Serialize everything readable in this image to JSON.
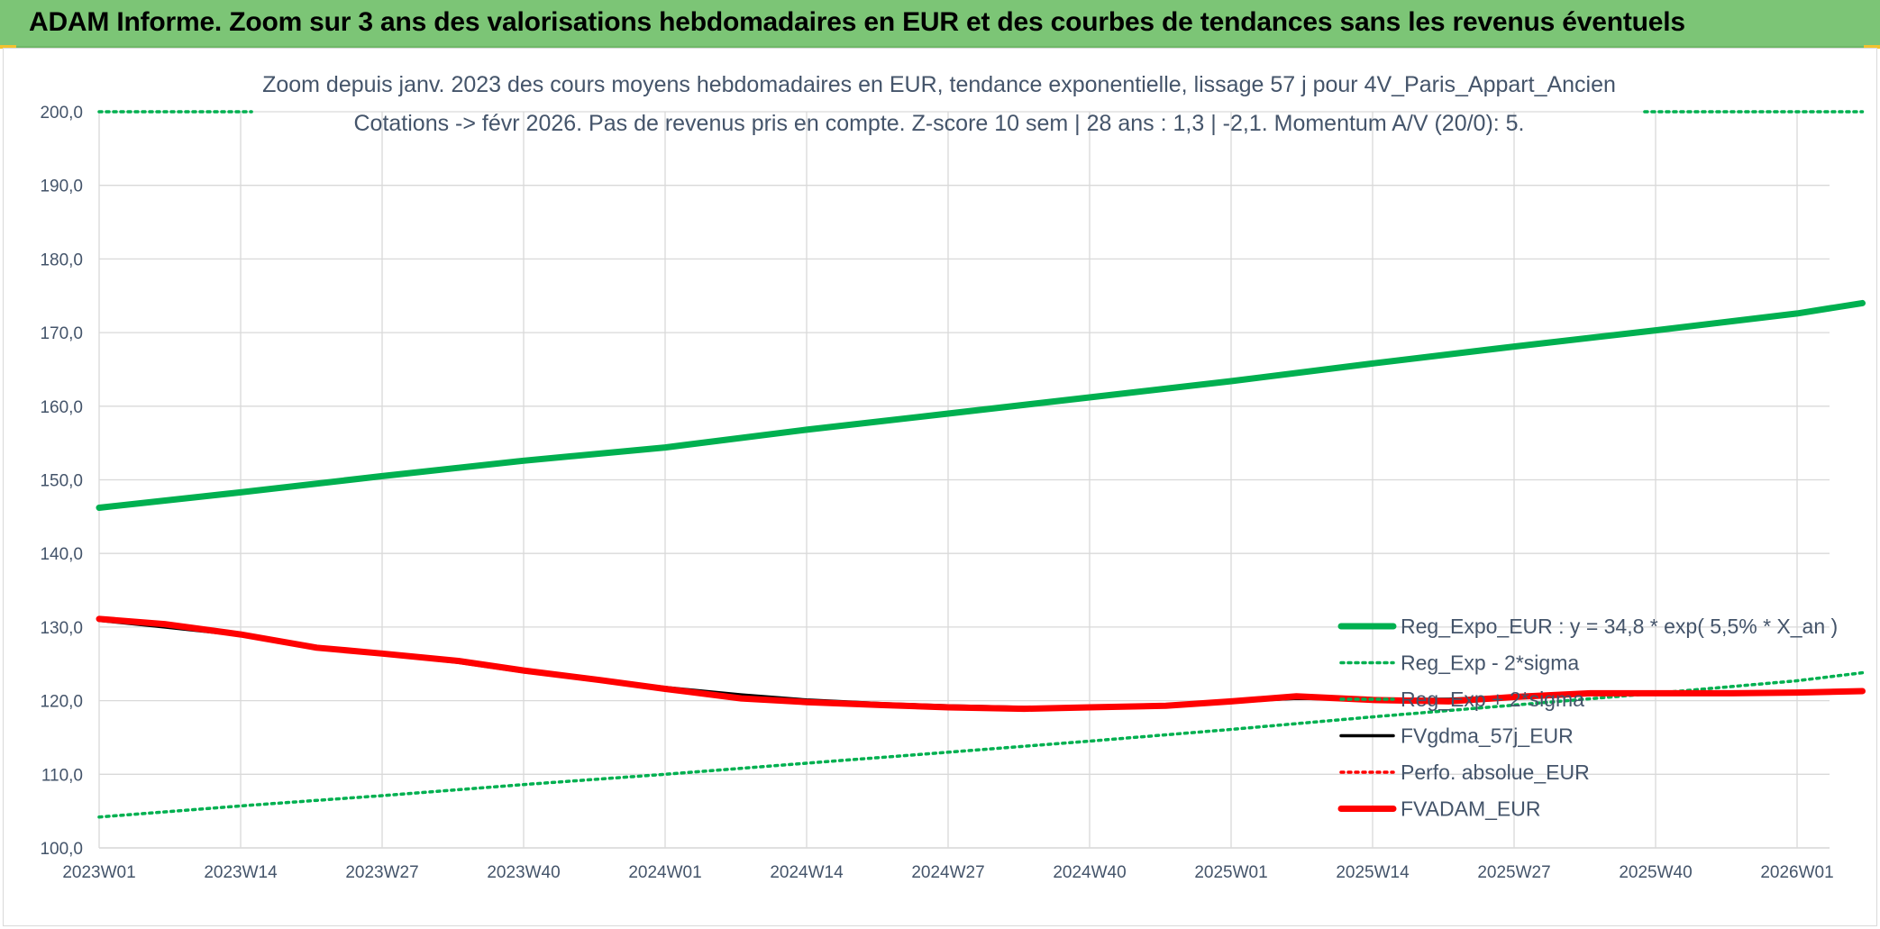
{
  "banner": {
    "title": "ADAM Informe. Zoom sur 3 ans des valorisations hebdomadaires en EUR et des courbes de tendances sans les revenus éventuels"
  },
  "colors": {
    "banner_bg": "#7cc576",
    "reg_expo": "#00b050",
    "fvgdma": "#000000",
    "fvadam": "#ff0000",
    "perfo": "#ff0000",
    "text": "#44546a"
  },
  "chart_data": {
    "type": "line",
    "title": "Zoom depuis janv. 2023 des cours moyens hebdomadaires en EUR, tendance exponentielle, lissage 57 j pour 4V_Paris_Appart_Ancien",
    "subtitle": "Cotations -> févr 2026. Pas de revenus pris en compte. Z-score 10 sem | 28 ans : 1,3 | -2,1. Momentum A/V (20/0): 5.",
    "x_ticks": [
      "2023W01",
      "2023W14",
      "2023W27",
      "2023W40",
      "2024W01",
      "2024W14",
      "2024W27",
      "2024W40",
      "2025W01",
      "2025W14",
      "2025W27",
      "2025W40",
      "2026W01"
    ],
    "y_ticks": [
      "100,0",
      "110,0",
      "120,0",
      "130,0",
      "140,0",
      "150,0",
      "160,0",
      "170,0",
      "180,0",
      "190,0",
      "200,0"
    ],
    "ylim": [
      100,
      200
    ],
    "x_unit_note": "x = week index starting at 2023W01 (0) to 2026W08 (162)",
    "xlim": [
      0,
      162
    ],
    "grid": true,
    "legend_position": "bottom-right",
    "series": [
      {
        "name": "Reg_Expo_EUR : y = 34,8 * exp( 5,5% *  X_an )",
        "style": "solid-thick",
        "color": "#00b050",
        "x": [
          0,
          13,
          26,
          39,
          52,
          65,
          78,
          91,
          104,
          117,
          130,
          143,
          156,
          162
        ],
        "y": [
          146.2,
          148.3,
          150.5,
          152.6,
          154.4,
          156.8,
          159.0,
          161.2,
          163.4,
          165.8,
          168.1,
          170.3,
          172.6,
          174.0
        ]
      },
      {
        "name": "Reg_Exp - 2*sigma",
        "style": "dotted",
        "color": "#00b050",
        "x": [
          0,
          13,
          26,
          39,
          52,
          65,
          78,
          91,
          104,
          117,
          130,
          143,
          156,
          162
        ],
        "y": [
          104.2,
          105.7,
          107.1,
          108.6,
          110.0,
          111.5,
          113.0,
          114.5,
          116.1,
          117.8,
          119.4,
          121.0,
          122.7,
          123.8
        ]
      },
      {
        "name": "Reg_Exp + 2*sigma",
        "style": "dotted",
        "color": "#00b050",
        "x": [
          0,
          14,
          142,
          162
        ],
        "y": [
          200.0,
          200.0,
          200.0,
          200.0
        ]
      },
      {
        "name": "FVgdma_57j_EUR",
        "style": "solid",
        "color": "#000000",
        "x": [
          0,
          6,
          13,
          20,
          26,
          33,
          39,
          46,
          52,
          59,
          65,
          72,
          78,
          85,
          91,
          98,
          104,
          110,
          117,
          124,
          130,
          137,
          143,
          150,
          156,
          162
        ],
        "y": [
          130.9,
          130.0,
          128.9,
          127.2,
          126.3,
          125.2,
          123.9,
          122.8,
          121.8,
          120.8,
          120.1,
          119.6,
          119.3,
          119.1,
          119.1,
          119.3,
          119.9,
          120.3,
          120.2,
          120.2,
          120.6,
          121.0,
          121.0,
          121.0,
          121.2,
          121.3
        ]
      },
      {
        "name": "Perfo. absolue_EUR",
        "style": "dotted",
        "color": "#ff0000",
        "x": [],
        "y": []
      },
      {
        "name": "FVADAM_EUR",
        "style": "solid-thick",
        "color": "#ff0000",
        "x": [
          0,
          6,
          13,
          20,
          26,
          33,
          39,
          46,
          52,
          59,
          65,
          72,
          78,
          85,
          91,
          98,
          104,
          110,
          117,
          124,
          130,
          137,
          143,
          150,
          156,
          162
        ],
        "y": [
          131.1,
          130.4,
          129.0,
          127.2,
          126.4,
          125.4,
          124.1,
          122.8,
          121.6,
          120.3,
          119.8,
          119.4,
          119.1,
          118.9,
          119.1,
          119.3,
          119.9,
          120.6,
          120.1,
          119.9,
          120.5,
          121.0,
          121.0,
          121.0,
          121.1,
          121.3
        ]
      }
    ],
    "legend": [
      {
        "label": "Reg_Expo_EUR : y = 34,8 * exp( 5,5% *  X_an )",
        "style": "solid-thick",
        "color": "#00b050"
      },
      {
        "label": "Reg_Exp - 2*sigma",
        "style": "dotted",
        "color": "#00b050"
      },
      {
        "label": "Reg_Exp + 2*sigma",
        "style": "dotted",
        "color": "#00b050"
      },
      {
        "label": "FVgdma_57j_EUR",
        "style": "solid",
        "color": "#000000"
      },
      {
        "label": "Perfo. absolue_EUR",
        "style": "dotted",
        "color": "#ff0000"
      },
      {
        "label": "FVADAM_EUR",
        "style": "solid-thick",
        "color": "#ff0000"
      }
    ]
  }
}
